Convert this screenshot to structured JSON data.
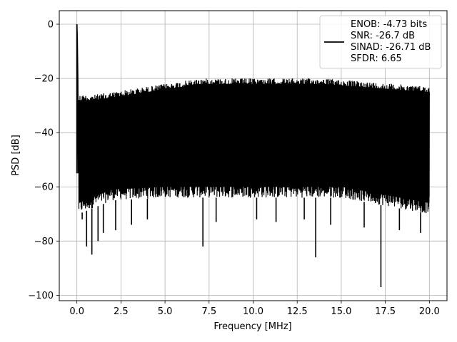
{
  "chart_data": {
    "type": "line",
    "title": "",
    "xlabel": "Frequency [MHz]",
    "ylabel": "PSD [dB]",
    "xlim": [
      -1.0,
      21.0
    ],
    "ylim": [
      -102.0,
      5.0
    ],
    "xticks": [
      0.0,
      2.5,
      5.0,
      7.5,
      10.0,
      12.5,
      15.0,
      17.5,
      20.0
    ],
    "xtick_labels": [
      "0.0",
      "2.5",
      "5.0",
      "7.5",
      "10.0",
      "12.5",
      "15.0",
      "17.5",
      "20.0"
    ],
    "yticks": [
      0,
      -20,
      -40,
      -60,
      -80,
      -100
    ],
    "ytick_labels": [
      "0",
      "−20",
      "−40",
      "−60",
      "−80",
      "−100"
    ],
    "grid": true,
    "legend_position": "top-right",
    "series": [
      {
        "name": "",
        "color": "#000000",
        "x_range": [
          0.0,
          20.0
        ],
        "upper_envelope": [
          [
            0.1,
            -26
          ],
          [
            1.0,
            -26
          ],
          [
            2.0,
            -25
          ],
          [
            3.0,
            -24
          ],
          [
            4.0,
            -23
          ],
          [
            5.0,
            -22
          ],
          [
            6.0,
            -21
          ],
          [
            7.0,
            -20
          ],
          [
            8.0,
            -20
          ],
          [
            10.0,
            -20
          ],
          [
            12.0,
            -20
          ],
          [
            14.0,
            -20
          ],
          [
            16.0,
            -21
          ],
          [
            18.0,
            -22
          ],
          [
            20.0,
            -23
          ]
        ],
        "lower_envelope": [
          [
            0.1,
            -70
          ],
          [
            2.0,
            -65
          ],
          [
            5.0,
            -64
          ],
          [
            10.0,
            -64
          ],
          [
            15.0,
            -64
          ],
          [
            20.0,
            -70
          ]
        ],
        "peaks": [
          [
            0.0,
            0.0
          ],
          [
            0.02,
            -5.0
          ],
          [
            0.05,
            -20.0
          ],
          [
            0.08,
            -55.0
          ]
        ],
        "dips": [
          [
            0.3,
            -72
          ],
          [
            0.55,
            -82
          ],
          [
            0.85,
            -85
          ],
          [
            1.2,
            -80
          ],
          [
            1.5,
            -77
          ],
          [
            2.2,
            -76
          ],
          [
            3.1,
            -74
          ],
          [
            4.0,
            -72
          ],
          [
            7.15,
            -82
          ],
          [
            7.9,
            -73
          ],
          [
            10.2,
            -72
          ],
          [
            11.3,
            -73
          ],
          [
            12.9,
            -72
          ],
          [
            13.55,
            -86
          ],
          [
            14.4,
            -74
          ],
          [
            16.3,
            -75
          ],
          [
            17.25,
            -97
          ],
          [
            18.3,
            -76
          ],
          [
            19.5,
            -77
          ]
        ]
      }
    ],
    "legend": {
      "lines": [
        "ENOB: -4.73 bits",
        "SNR: -26.7 dB",
        "SINAD: -26.71 dB",
        "SFDR: 6.65"
      ]
    }
  }
}
